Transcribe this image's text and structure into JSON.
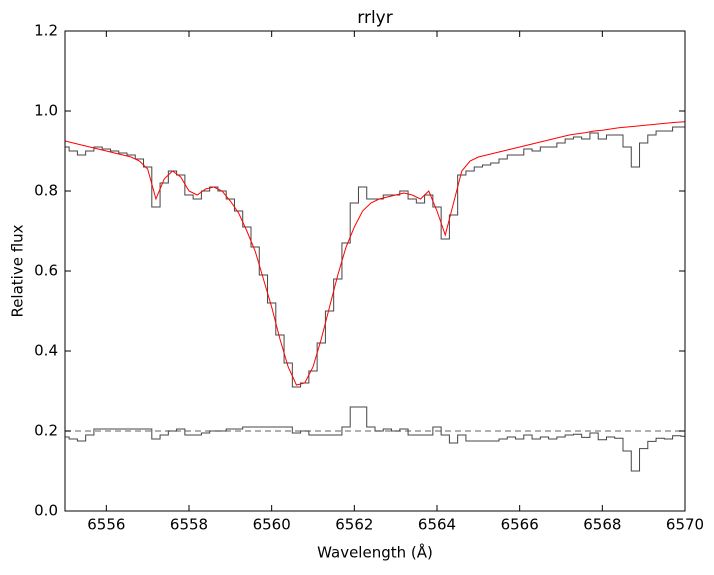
{
  "chart_data": {
    "type": "line",
    "title": "rrlyr",
    "x_label": "Wavelength (Å)",
    "y_label": "Relative flux",
    "xlim": [
      6555,
      6570
    ],
    "xticks": [
      6556,
      6558,
      6560,
      6562,
      6564,
      6566,
      6568,
      6570
    ],
    "ylim": [
      0,
      1.2
    ],
    "yticks": [
      {
        "value": 0,
        "label": "0.0"
      },
      0.2,
      0.4,
      0.6,
      0.8,
      {
        "value": 1,
        "label": "1.0"
      },
      1.2
    ],
    "grid": false,
    "reference_line": {
      "value": 0.2,
      "color": "#808080",
      "style": "dashed"
    },
    "x": [
      6555.0,
      6555.2,
      6555.4,
      6555.6,
      6555.8,
      6556.0,
      6556.2,
      6556.4,
      6556.6,
      6556.8,
      6557.0,
      6557.2,
      6557.4,
      6557.6,
      6557.8,
      6558.0,
      6558.2,
      6558.4,
      6558.6,
      6558.8,
      6559.0,
      6559.2,
      6559.4,
      6559.6,
      6559.8,
      6560.0,
      6560.2,
      6560.4,
      6560.6,
      6560.8,
      6561.0,
      6561.2,
      6561.4,
      6561.6,
      6561.8,
      6562.0,
      6562.2,
      6562.4,
      6562.6,
      6562.8,
      6563.0,
      6563.2,
      6563.4,
      6563.6,
      6563.8,
      6564.0,
      6564.2,
      6564.4,
      6564.6,
      6564.8,
      6565.0,
      6565.2,
      6565.4,
      6565.6,
      6565.8,
      6566.0,
      6566.2,
      6566.4,
      6566.6,
      6566.8,
      6567.0,
      6567.2,
      6567.4,
      6567.6,
      6567.8,
      6568.0,
      6568.2,
      6568.4,
      6568.6,
      6568.8,
      6569.0,
      6569.2,
      6569.4,
      6569.6,
      6569.8,
      6570.0
    ],
    "series": [
      {
        "color": "#444444",
        "drawstyle": "steps-mid",
        "values": [
          0.91,
          0.9,
          0.89,
          0.9,
          0.91,
          0.905,
          0.9,
          0.895,
          0.89,
          0.88,
          0.86,
          0.76,
          0.82,
          0.85,
          0.84,
          0.79,
          0.78,
          0.8,
          0.81,
          0.8,
          0.78,
          0.75,
          0.71,
          0.66,
          0.59,
          0.52,
          0.44,
          0.37,
          0.31,
          0.32,
          0.35,
          0.42,
          0.5,
          0.58,
          0.67,
          0.77,
          0.81,
          0.78,
          0.78,
          0.79,
          0.79,
          0.8,
          0.78,
          0.77,
          0.79,
          0.76,
          0.68,
          0.74,
          0.84,
          0.85,
          0.86,
          0.865,
          0.87,
          0.88,
          0.89,
          0.89,
          0.905,
          0.9,
          0.91,
          0.91,
          0.92,
          0.93,
          0.935,
          0.93,
          0.945,
          0.93,
          0.94,
          0.94,
          0.91,
          0.86,
          0.92,
          0.94,
          0.95,
          0.95,
          0.96,
          0.96
        ]
      },
      {
        "color": "#ff0000",
        "drawstyle": "default",
        "values": [
          0.925,
          0.92,
          0.915,
          0.91,
          0.905,
          0.9,
          0.895,
          0.89,
          0.885,
          0.875,
          0.855,
          0.78,
          0.83,
          0.85,
          0.835,
          0.8,
          0.79,
          0.805,
          0.81,
          0.8,
          0.775,
          0.745,
          0.7,
          0.65,
          0.58,
          0.51,
          0.43,
          0.36,
          0.315,
          0.32,
          0.36,
          0.43,
          0.51,
          0.59,
          0.66,
          0.71,
          0.75,
          0.77,
          0.78,
          0.785,
          0.79,
          0.795,
          0.79,
          0.78,
          0.8,
          0.75,
          0.69,
          0.77,
          0.85,
          0.875,
          0.885,
          0.89,
          0.895,
          0.9,
          0.905,
          0.91,
          0.915,
          0.92,
          0.925,
          0.93,
          0.935,
          0.94,
          0.943,
          0.946,
          0.95,
          0.952,
          0.955,
          0.958,
          0.96,
          0.962,
          0.964,
          0.966,
          0.968,
          0.97,
          0.972,
          0.973
        ]
      },
      {
        "color": "#444444",
        "drawstyle": "steps-mid",
        "values": [
          0.185,
          0.18,
          0.175,
          0.19,
          0.205,
          0.205,
          0.205,
          0.205,
          0.205,
          0.205,
          0.205,
          0.18,
          0.19,
          0.2,
          0.205,
          0.19,
          0.19,
          0.195,
          0.2,
          0.2,
          0.205,
          0.205,
          0.21,
          0.21,
          0.21,
          0.21,
          0.21,
          0.21,
          0.195,
          0.2,
          0.19,
          0.19,
          0.19,
          0.19,
          0.21,
          0.26,
          0.26,
          0.21,
          0.2,
          0.205,
          0.2,
          0.205,
          0.19,
          0.19,
          0.19,
          0.21,
          0.19,
          0.17,
          0.19,
          0.175,
          0.175,
          0.175,
          0.175,
          0.18,
          0.185,
          0.18,
          0.19,
          0.18,
          0.185,
          0.18,
          0.185,
          0.19,
          0.192,
          0.184,
          0.195,
          0.178,
          0.185,
          0.182,
          0.15,
          0.1,
          0.156,
          0.174,
          0.182,
          0.18,
          0.188,
          0.187
        ]
      }
    ]
  }
}
